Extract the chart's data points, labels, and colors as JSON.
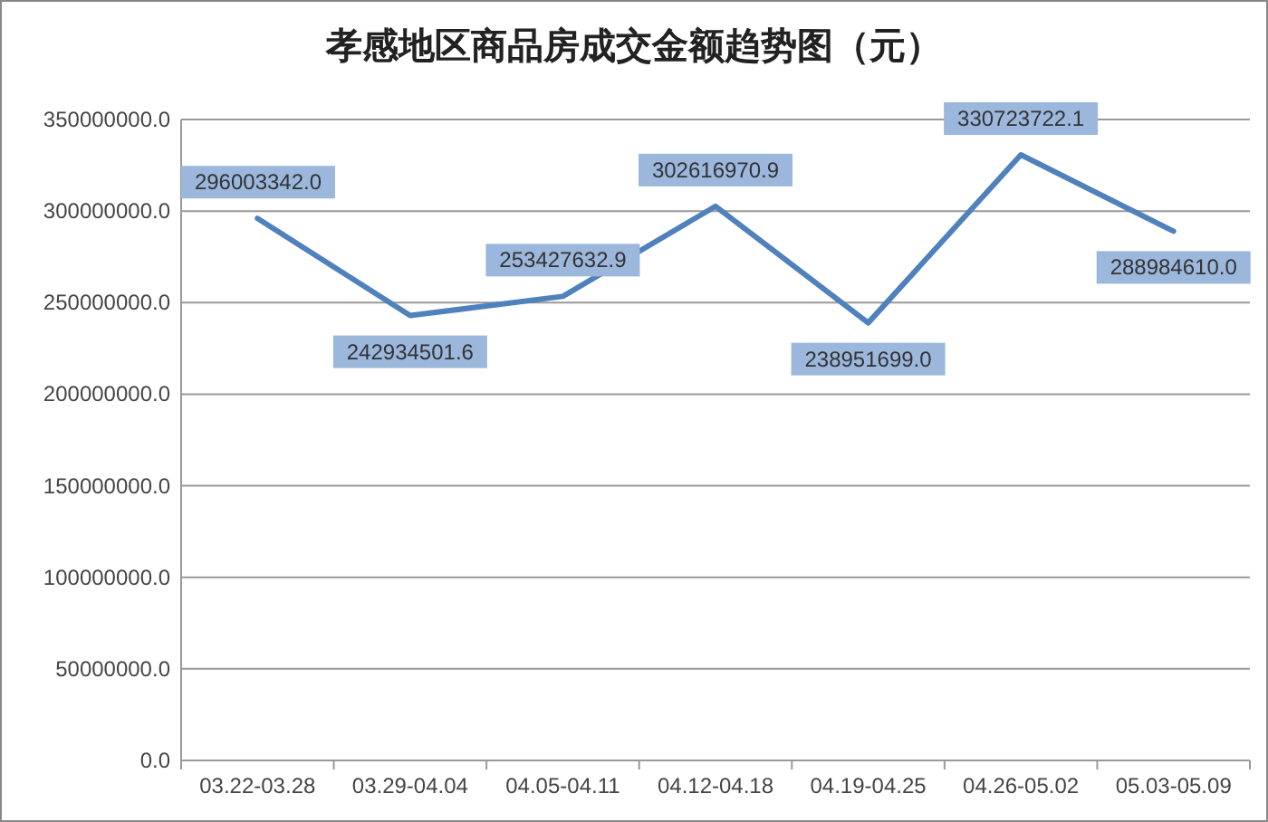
{
  "chart_data": {
    "type": "line",
    "title": "孝感地区商品房成交金额趋势图（元）",
    "categories": [
      "03.22-03.28",
      "03.29-04.04",
      "04.05-04.11",
      "04.12-04.18",
      "04.19-04.25",
      "04.26-05.02",
      "05.03-05.09"
    ],
    "series": [
      {
        "color": "#4f81bd",
        "values": [
          296003342.0,
          242934501.6,
          253427632.9,
          302616970.9,
          238951699.0,
          330723722.1,
          288984610.0
        ],
        "value_labels": [
          "296003342.0",
          "242934501.6",
          "253427632.9",
          "302616970.9",
          "238951699.0",
          "330723722.1",
          "288984610.0"
        ]
      }
    ],
    "ylim": [
      0,
      350000000
    ],
    "yticks": [
      {
        "value": 0,
        "label": "0.0"
      },
      {
        "value": 50000000,
        "label": "50000000.0"
      },
      {
        "value": 100000000,
        "label": "100000000.0"
      },
      {
        "value": 150000000,
        "label": "150000000.0"
      },
      {
        "value": 200000000,
        "label": "200000000.0"
      },
      {
        "value": 250000000,
        "label": "250000000.0"
      },
      {
        "value": 300000000,
        "label": "300000000.0"
      },
      {
        "value": 350000000,
        "label": "350000000.0"
      }
    ],
    "grid": "y",
    "marker": "none",
    "line_style": "solid"
  }
}
